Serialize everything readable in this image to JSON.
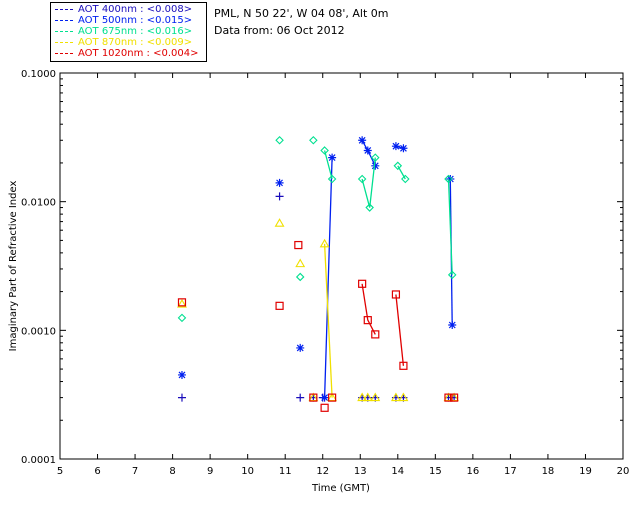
{
  "info": {
    "site": "PML, N 50 22', W 04 08', Alt 0m",
    "date": "Data from: 06 Oct 2012"
  },
  "legend": [
    {
      "label": "AOT  400nm : <0.008>",
      "color": "#1a0dbb"
    },
    {
      "label": "AOT  500nm : <0.015>",
      "color": "#0020f0"
    },
    {
      "label": "AOT  675nm : <0.016>",
      "color": "#00e090"
    },
    {
      "label": "AOT  870nm : <0.009>",
      "color": "#f0e000"
    },
    {
      "label": "AOT 1020nm : <0.004>",
      "color": "#e00000"
    }
  ],
  "chart_data": {
    "type": "scatter",
    "xlabel": "Time (GMT)",
    "ylabel": "Imaginary Part of Refractive Index",
    "xlim": [
      5,
      20
    ],
    "ylim": [
      0.0001,
      0.1
    ],
    "yscale": "log",
    "xticks": [
      5,
      6,
      7,
      8,
      9,
      10,
      11,
      12,
      13,
      14,
      15,
      16,
      17,
      18,
      19,
      20
    ],
    "yticks": [
      {
        "value": 0.0001,
        "label": "0.0001"
      },
      {
        "value": 0.001,
        "label": "0.0010"
      },
      {
        "value": 0.01,
        "label": "0.0100"
      },
      {
        "value": 0.1,
        "label": "0.1000"
      }
    ],
    "grid": false,
    "series": [
      {
        "name": "AOT  400nm : <0.008>",
        "color": "#1a0dbb",
        "marker": "plus",
        "points": [
          [
            8.25,
            0.0003
          ],
          [
            10.85,
            0.011
          ],
          [
            11.4,
            0.0003
          ],
          [
            11.75,
            0.0003
          ],
          [
            12.0,
            0.0003
          ],
          [
            13.05,
            0.0003
          ],
          [
            13.2,
            0.0003
          ],
          [
            13.4,
            0.0003
          ],
          [
            13.95,
            0.0003
          ],
          [
            14.15,
            0.0003
          ],
          [
            15.35,
            0.0003
          ],
          [
            15.5,
            0.0003
          ]
        ],
        "segments": []
      },
      {
        "name": "AOT  500nm : <0.015>",
        "color": "#0020f0",
        "marker": "asterisk",
        "points": [
          [
            8.25,
            0.00045
          ],
          [
            10.85,
            0.014
          ],
          [
            11.4,
            0.00073
          ],
          [
            12.05,
            0.0003
          ],
          [
            12.25,
            0.022
          ],
          [
            13.05,
            0.03
          ],
          [
            13.2,
            0.025
          ],
          [
            13.4,
            0.019
          ],
          [
            13.95,
            0.027
          ],
          [
            14.15,
            0.026
          ],
          [
            15.4,
            0.015
          ],
          [
            15.45,
            0.0011
          ]
        ],
        "segments": [
          [
            [
              12.05,
              0.0003
            ],
            [
              12.25,
              0.022
            ]
          ],
          [
            [
              13.05,
              0.03
            ],
            [
              13.2,
              0.025
            ],
            [
              13.4,
              0.019
            ]
          ],
          [
            [
              13.95,
              0.027
            ],
            [
              14.15,
              0.026
            ]
          ],
          [
            [
              15.4,
              0.015
            ],
            [
              15.45,
              0.0011
            ]
          ]
        ]
      },
      {
        "name": "AOT  675nm : <0.016>",
        "color": "#00e090",
        "marker": "diamond",
        "points": [
          [
            8.25,
            0.00125
          ],
          [
            10.85,
            0.03
          ],
          [
            11.4,
            0.0026
          ],
          [
            11.75,
            0.03
          ],
          [
            12.05,
            0.025
          ],
          [
            12.25,
            0.015
          ],
          [
            13.05,
            0.015
          ],
          [
            13.25,
            0.009
          ],
          [
            13.4,
            0.022
          ],
          [
            14.0,
            0.019
          ],
          [
            14.2,
            0.015
          ],
          [
            15.35,
            0.015
          ],
          [
            15.45,
            0.0027
          ]
        ],
        "segments": [
          [
            [
              12.05,
              0.025
            ],
            [
              12.25,
              0.015
            ]
          ],
          [
            [
              13.05,
              0.015
            ],
            [
              13.25,
              0.009
            ],
            [
              13.4,
              0.022
            ]
          ],
          [
            [
              14.0,
              0.019
            ],
            [
              14.2,
              0.015
            ]
          ],
          [
            [
              15.35,
              0.015
            ],
            [
              15.45,
              0.0027
            ]
          ]
        ]
      },
      {
        "name": "AOT  870nm : <0.009>",
        "color": "#f0e000",
        "marker": "triangle",
        "points": [
          [
            8.25,
            0.0016
          ],
          [
            10.85,
            0.0068
          ],
          [
            11.4,
            0.0033
          ],
          [
            11.75,
            0.0003
          ],
          [
            12.05,
            0.0047
          ],
          [
            12.25,
            0.0003
          ],
          [
            13.05,
            0.0003
          ],
          [
            13.2,
            0.0003
          ],
          [
            13.4,
            0.0003
          ],
          [
            13.95,
            0.0003
          ],
          [
            14.15,
            0.0003
          ],
          [
            15.35,
            0.0003
          ],
          [
            15.5,
            0.0003
          ]
        ],
        "segments": [
          [
            [
              12.05,
              0.0047
            ],
            [
              12.25,
              0.0003
            ]
          ]
        ]
      },
      {
        "name": "AOT 1020nm : <0.004>",
        "color": "#e00000",
        "marker": "square",
        "points": [
          [
            8.25,
            0.00165
          ],
          [
            10.85,
            0.00155
          ],
          [
            11.35,
            0.0046
          ],
          [
            11.75,
            0.0003
          ],
          [
            12.05,
            0.00025
          ],
          [
            12.25,
            0.0003
          ],
          [
            13.05,
            0.0023
          ],
          [
            13.2,
            0.0012
          ],
          [
            13.4,
            0.00093
          ],
          [
            13.95,
            0.0019
          ],
          [
            14.15,
            0.00053
          ],
          [
            15.35,
            0.0003
          ],
          [
            15.5,
            0.0003
          ]
        ],
        "segments": [
          [
            [
              13.05,
              0.0023
            ],
            [
              13.2,
              0.0012
            ],
            [
              13.4,
              0.00093
            ]
          ],
          [
            [
              13.95,
              0.0019
            ],
            [
              14.15,
              0.00053
            ]
          ]
        ]
      }
    ]
  }
}
